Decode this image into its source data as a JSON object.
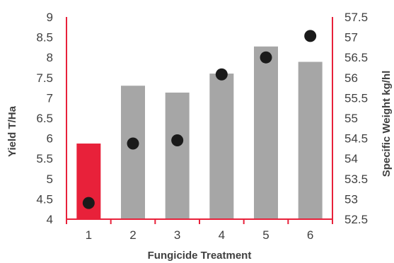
{
  "chart_data": {
    "type": "bar",
    "title": "",
    "xlabel": "Fungicide Treatment",
    "ylabel": "Yield T/Ha",
    "y2label": "Specific Weight kg/hl",
    "categories": [
      "1",
      "2",
      "3",
      "4",
      "5",
      "6"
    ],
    "series": [
      {
        "kind": "bar",
        "axis": "left",
        "values": [
          5.87,
          7.3,
          7.13,
          7.6,
          8.27,
          7.89
        ]
      },
      {
        "kind": "scatter",
        "axis": "right",
        "values": [
          52.9,
          54.37,
          54.45,
          56.08,
          56.5,
          57.03
        ]
      }
    ],
    "ylim": [
      4,
      9
    ],
    "yticks": [
      "4",
      "4.5",
      "5",
      "5.5",
      "6",
      "6.5",
      "7",
      "7.5",
      "8",
      "8.5",
      "9"
    ],
    "y2lim": [
      52.5,
      57.5
    ],
    "y2ticks": [
      "52.5",
      "53",
      "53.5",
      "54",
      "54.5",
      "55",
      "55.5",
      "56",
      "56.5",
      "57",
      "57.5"
    ],
    "grid": false,
    "legend": "none",
    "colors": {
      "first_bar": "#e8213a",
      "bar": "#a6a6a6",
      "marker": "#1a1a1a",
      "axis": "#e8213a",
      "text": "#404040"
    }
  }
}
